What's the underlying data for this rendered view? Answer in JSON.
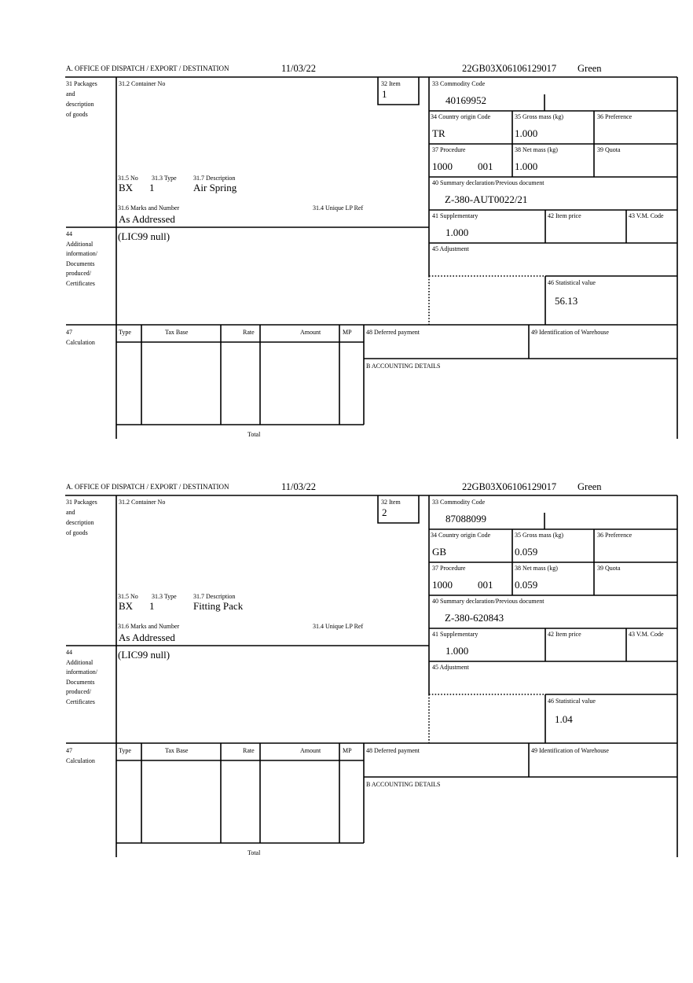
{
  "forms": [
    {
      "header": {
        "office_label": "A.  OFFICE OF DISPATCH / EXPORT / DESTINATION",
        "date": "11/03/22",
        "reference": "22GB03X06106129017",
        "route": "Green"
      },
      "labels": {
        "packages": [
          "31 Packages",
          "and",
          "description",
          "of goods"
        ],
        "container_no": "31.2 Container No",
        "item": "32 Item",
        "commodity_code": "33 Commodity Code",
        "country_origin": "34 Country origin Code",
        "gross_mass": "35 Gross mass (kg)",
        "preference": "36 Preference",
        "procedure": "37 Procedure",
        "net_mass": "38 Net mass (kg)",
        "quota": "39 Quota",
        "summary_decl": "40 Summary declaration/Previous document",
        "supplementary": "41 Supplementary",
        "item_price": "42 Item price",
        "vm_code": "43 V.M. Code",
        "adjustment": "45 Adjustment",
        "statistical_value": "46 Statistical value",
        "no": "31.5 No",
        "type": "31.3 Type",
        "description": "31.7 Description",
        "marks": "31.6 Marks and Number",
        "unique_ref": "31.4 Unique LP Ref",
        "additional": [
          "44",
          "Additional",
          "information/",
          "Documents",
          "produced/",
          "Certificates"
        ],
        "calculation": [
          "47",
          "Calculation"
        ],
        "calc_cols": [
          "Type",
          "Tax Base",
          "Rate",
          "Amount",
          "MP"
        ],
        "total": "Total",
        "deferred_payment": "48 Deferred payment",
        "warehouse": "49 Identification of Warehouse",
        "accounting": "B ACCOUNTING DETAILS"
      },
      "values": {
        "item": "1",
        "commodity_code": "40169952",
        "country_origin": "TR",
        "gross_mass": "1.000",
        "procedure": "1000",
        "procedure_sub": "001",
        "net_mass": "1.000",
        "summary_decl": "Z-380-AUT0022/21",
        "supplementary": "1.000",
        "statistical_value": "56.13",
        "no": "BX",
        "type": "1",
        "description": "Air Spring",
        "marks": "As Addressed",
        "additional": "(LIC99 null)"
      }
    },
    {
      "header": {
        "office_label": "A.  OFFICE OF DISPATCH / EXPORT / DESTINATION",
        "date": "11/03/22",
        "reference": "22GB03X06106129017",
        "route": "Green"
      },
      "labels": {
        "packages": [
          "31 Packages",
          "and",
          "description",
          "of goods"
        ],
        "container_no": "31.2 Container No",
        "item": "32 Item",
        "commodity_code": "33 Commodity Code",
        "country_origin": "34 Country origin Code",
        "gross_mass": "35 Gross mass (kg)",
        "preference": "36 Preference",
        "procedure": "37 Procedure",
        "net_mass": "38 Net mass (kg)",
        "quota": "39 Quota",
        "summary_decl": "40 Summary declaration/Previous document",
        "supplementary": "41 Supplementary",
        "item_price": "42 Item price",
        "vm_code": "43 V.M. Code",
        "adjustment": "45 Adjustment",
        "statistical_value": "46 Statistical value",
        "no": "31.5 No",
        "type": "31.3 Type",
        "description": "31.7 Description",
        "marks": "31.6 Marks and Number",
        "unique_ref": "31.4 Unique LP Ref",
        "additional": [
          "44",
          "Additional",
          "information/",
          "Documents",
          "produced/",
          "Certificates"
        ],
        "calculation": [
          "47",
          "Calculation"
        ],
        "calc_cols": [
          "Type",
          "Tax Base",
          "Rate",
          "Amount",
          "MP"
        ],
        "total": "Total",
        "deferred_payment": "48 Deferred payment",
        "warehouse": "49 Identification of Warehouse",
        "accounting": "B ACCOUNTING DETAILS"
      },
      "values": {
        "item": "2",
        "commodity_code": "87088099",
        "country_origin": "GB",
        "gross_mass": "0.059",
        "procedure": "1000",
        "procedure_sub": "001",
        "net_mass": "0.059",
        "summary_decl": "Z-380-620843",
        "supplementary": "1.000",
        "statistical_value": "1.04",
        "no": "BX",
        "type": "1",
        "description": "Fitting Pack",
        "marks": "As Addressed",
        "additional": "(LIC99 null)"
      }
    }
  ]
}
